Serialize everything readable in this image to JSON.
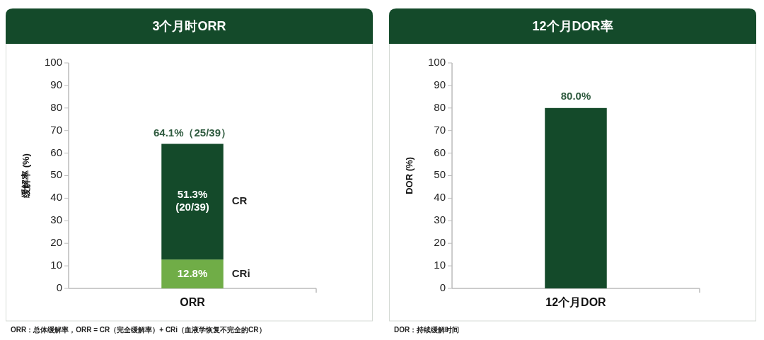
{
  "chart_data": [
    {
      "type": "bar",
      "title": "3个月时ORR",
      "ylabel": "缓解率 (%)",
      "categories": [
        "ORR"
      ],
      "stacked": true,
      "ylim": [
        0,
        100
      ],
      "yticks": [
        0,
        10,
        20,
        30,
        40,
        50,
        60,
        70,
        80,
        90,
        100
      ],
      "grid": false,
      "series": [
        {
          "name": "CRi",
          "color": "#70ad47",
          "values": [
            12.8
          ],
          "value_labels": [
            "12.8%"
          ]
        },
        {
          "name": "CR",
          "color": "#144a2a",
          "values": [
            51.3
          ],
          "value_labels": [
            "51.3% (20/39)"
          ]
        }
      ],
      "totals": [
        "64.1%（25/39）"
      ],
      "annotations": [
        "ORR：总体缓解率，ORR = CR（完全缓解率）+ CRi（血液学恢复不完全的CR）"
      ]
    },
    {
      "type": "bar",
      "title": "12个月DOR率",
      "ylabel": "DOR (%)",
      "categories": [
        "12个月DOR"
      ],
      "ylim": [
        0,
        100
      ],
      "yticks": [
        0,
        10,
        20,
        30,
        40,
        50,
        60,
        70,
        80,
        90,
        100
      ],
      "grid": false,
      "series": [
        {
          "color": "#144a2a",
          "values": [
            80.0
          ],
          "value_labels": [
            "80.0%"
          ]
        }
      ],
      "annotations": [
        "DOR：持续缓解时间"
      ]
    }
  ]
}
